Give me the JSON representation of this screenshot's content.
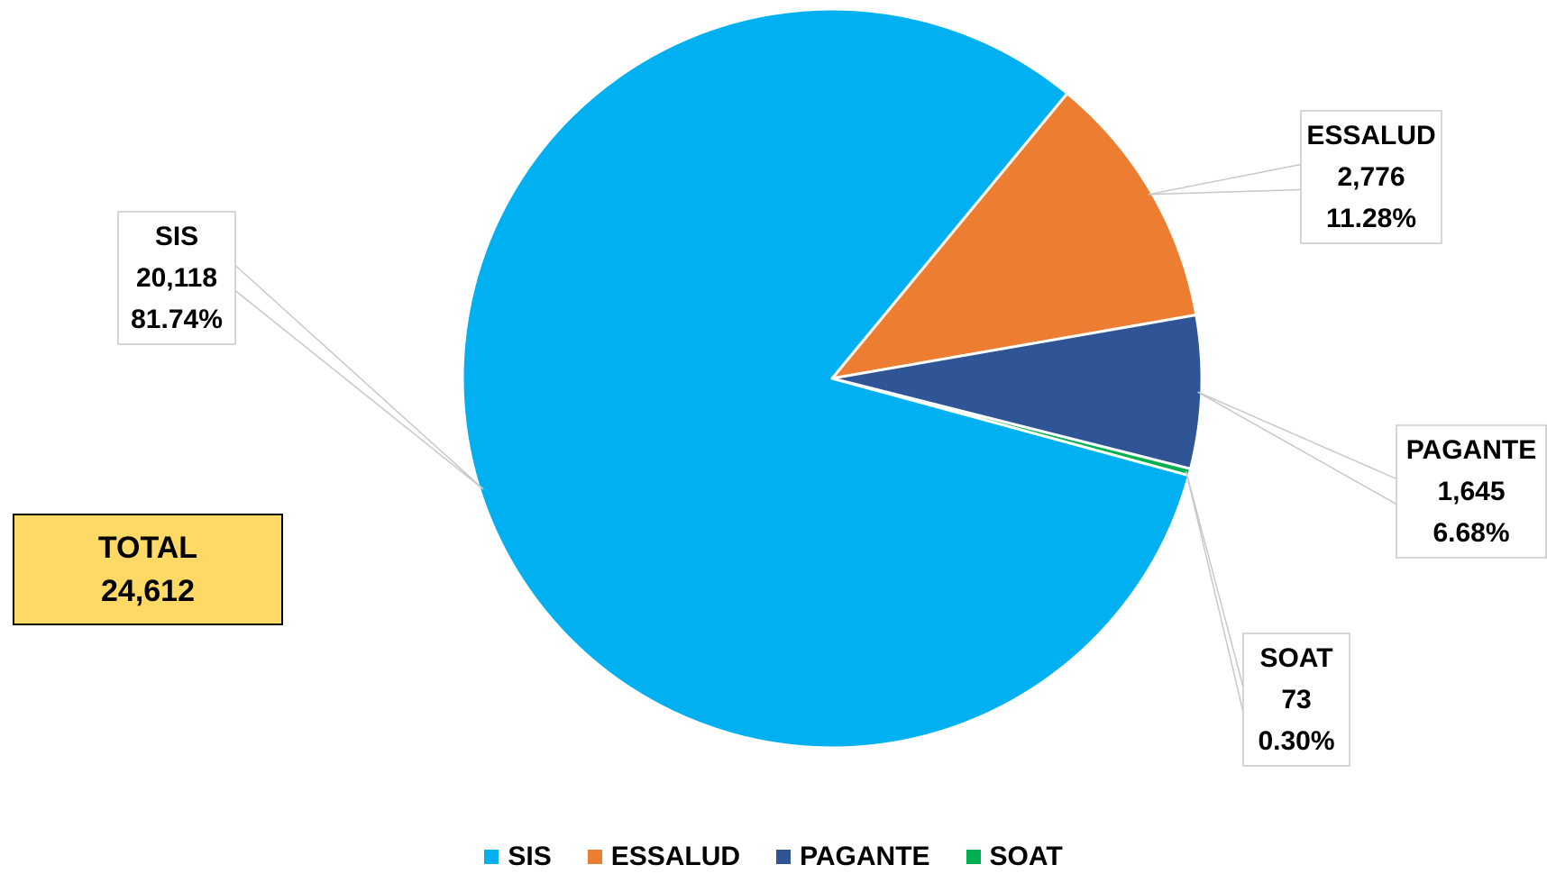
{
  "chart_data": {
    "type": "pie",
    "title": "",
    "categories": [
      "SIS",
      "ESSALUD",
      "PAGANTE",
      "SOAT"
    ],
    "values": [
      20118,
      2776,
      1645,
      73
    ],
    "value_labels": [
      "20,118",
      "2,776",
      "1,645",
      "73"
    ],
    "percentages": [
      "81.74%",
      "11.28%",
      "6.68%",
      "0.30%"
    ],
    "colors": [
      "#00b0f0",
      "#ed7d31",
      "#2f5597",
      "#00b050"
    ],
    "legend_position": "bottom",
    "total": {
      "label": "TOTAL",
      "value": "24,612"
    }
  }
}
